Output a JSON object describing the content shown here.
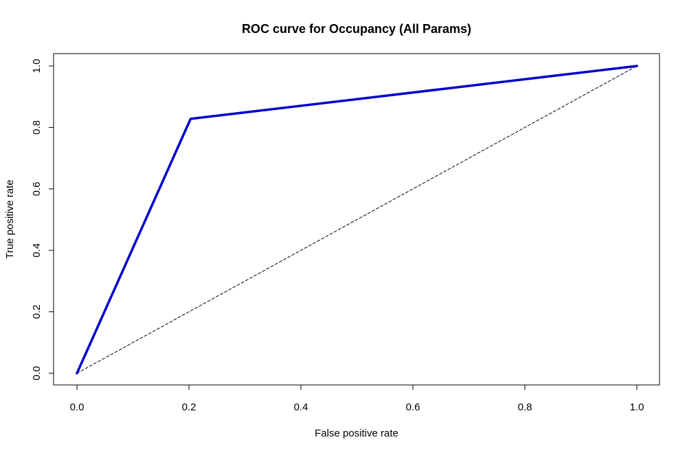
{
  "chart_data": {
    "type": "line",
    "title": "ROC curve for Occupancy (All Params)",
    "xlabel": "False positive rate",
    "ylabel": "True positive rate",
    "xlim": [
      0,
      1
    ],
    "ylim": [
      0,
      1
    ],
    "xticks": [
      "0.0",
      "0.2",
      "0.4",
      "0.6",
      "0.8",
      "1.0"
    ],
    "yticks": [
      "0.0",
      "0.2",
      "0.4",
      "0.6",
      "0.8",
      "1.0"
    ],
    "grid": false,
    "legend": "none",
    "series": [
      {
        "style": "solid",
        "color": "#0000cc",
        "x": [
          0.0,
          0.203,
          1.0
        ],
        "y": [
          0.0,
          0.828,
          1.0
        ]
      },
      {
        "style": "dashed",
        "color": "#000000",
        "x": [
          0.0,
          1.0
        ],
        "y": [
          0.0,
          1.0
        ]
      }
    ]
  }
}
